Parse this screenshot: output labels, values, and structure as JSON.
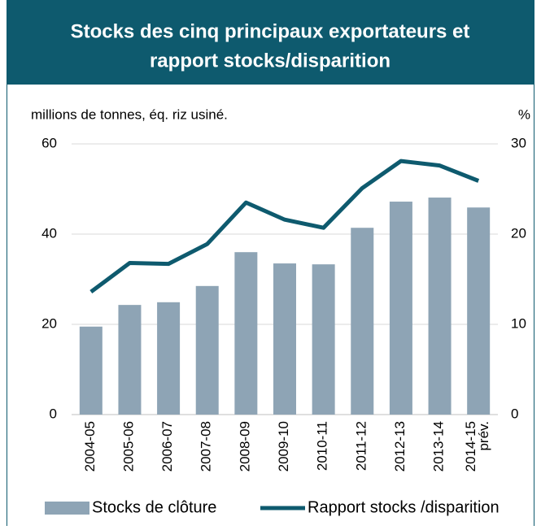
{
  "chart_data": {
    "type": "bar_line",
    "title": [
      "Stocks des cinq principaux exportateurs et",
      "rapport stocks/disparition"
    ],
    "y_axis_label": "millions de tonnes, éq. riz usiné.",
    "y2_axis_label": "%",
    "categories": [
      "2004-05",
      "2005-06",
      "2006-07",
      "2007-08",
      "2008-09",
      "2009-10",
      "2010-11",
      "2011-12",
      "2012-13",
      "2013-14",
      "2014-15 prév."
    ],
    "series": [
      {
        "name": "Stocks de clôture",
        "type": "bar",
        "color": "#8ea4b5",
        "values": [
          19.5,
          24.3,
          24.9,
          28.5,
          36.0,
          33.5,
          33.3,
          41.4,
          47.2,
          48.1,
          45.9
        ]
      },
      {
        "name": "Rapport stocks /disparition",
        "type": "line",
        "axis": "y2",
        "color": "#0e5a6e",
        "values": [
          13.6,
          16.8,
          16.7,
          18.9,
          23.5,
          21.6,
          20.7,
          25.1,
          28.1,
          27.6,
          25.9
        ]
      }
    ],
    "ylim": [
      0,
      60
    ],
    "yticks": [
      0,
      20,
      40,
      60
    ],
    "y2lim": [
      0,
      30
    ],
    "y2ticks": [
      0,
      10,
      20,
      30
    ],
    "grid": true,
    "legend": "bottom"
  }
}
